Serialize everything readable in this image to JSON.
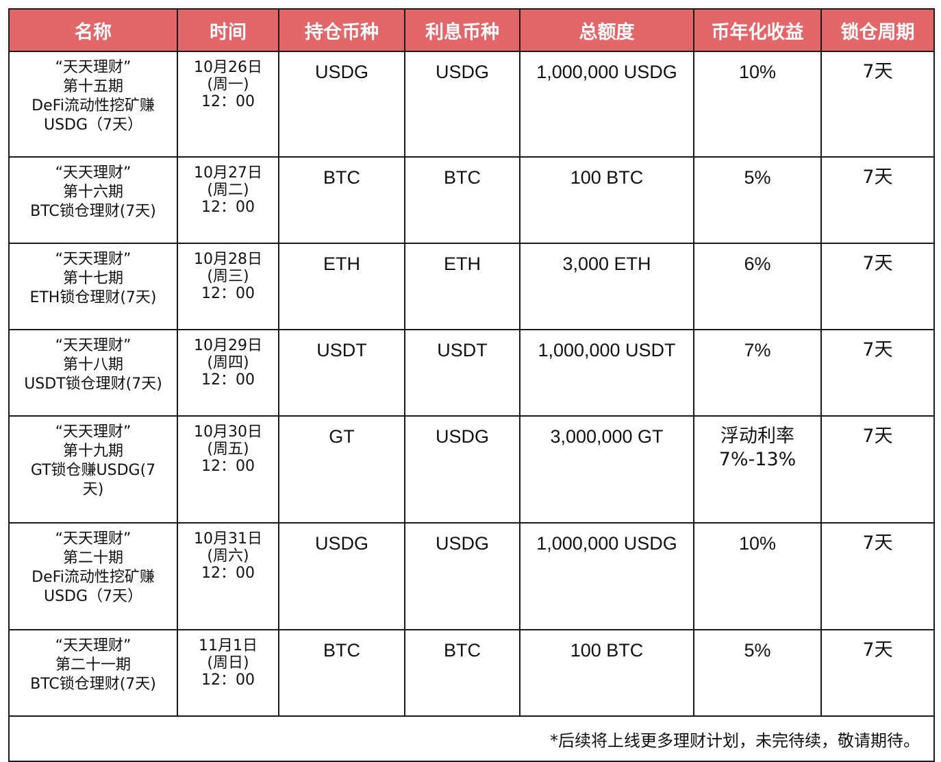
{
  "headers": [
    "名称",
    "时间",
    "持仓币种",
    "利息币种",
    "总额度",
    "币年化收益",
    "锁仓周期"
  ],
  "rows": [
    {
      "name": [
        "“天天理财”",
        "第十五期",
        "DeFi流动性挖矿赚",
        "USDG（7天）"
      ],
      "time": [
        "10月26日",
        "(周一)",
        "12：00"
      ],
      "holding": "USDG",
      "interest": "USDG",
      "total": "1,000,000 USDG",
      "apy": [
        "10%"
      ],
      "lock": "7天"
    },
    {
      "name": [
        "“天天理财”",
        "第十六期",
        "BTC锁仓理财(7天)"
      ],
      "time": [
        "10月27日",
        "(周二)",
        "12：00"
      ],
      "holding": "BTC",
      "interest": "BTC",
      "total": "100 BTC",
      "apy": [
        "5%"
      ],
      "lock": "7天"
    },
    {
      "name": [
        "“天天理财”",
        "第十七期",
        "ETH锁仓理财(7天)"
      ],
      "time": [
        "10月28日",
        "(周三)",
        "12：00"
      ],
      "holding": "ETH",
      "interest": "ETH",
      "total": "3,000 ETH",
      "apy": [
        "6%"
      ],
      "lock": "7天"
    },
    {
      "name": [
        "“天天理财”",
        "第十八期",
        "USDT锁仓理财(7天)"
      ],
      "time": [
        "10月29日",
        "(周四)",
        "12：00"
      ],
      "holding": "USDT",
      "interest": "USDT",
      "total": "1,000,000 USDT",
      "apy": [
        "7%"
      ],
      "lock": "7天"
    },
    {
      "name": [
        "“天天理财”",
        "第十九期",
        "GT锁仓赚USDG(7",
        "天)"
      ],
      "time": [
        "10月30日",
        "(周五)",
        "12：00"
      ],
      "holding": "GT",
      "interest": "USDG",
      "total": "3,000,000 GT",
      "apy": [
        "浮动利率",
        "7%-13%"
      ],
      "lock": "7天"
    },
    {
      "name": [
        "“天天理财”",
        "第二十期",
        "DeFi流动性挖矿赚",
        "USDG（7天）"
      ],
      "time": [
        "10月31日",
        "(周六)",
        "12：00"
      ],
      "holding": "USDG",
      "interest": "USDG",
      "total": "1,000,000 USDG",
      "apy": [
        "10%"
      ],
      "lock": "7天"
    },
    {
      "name": [
        "“天天理财”",
        "第二十一期",
        "BTC锁仓理财(7天)"
      ],
      "time": [
        "11月1日",
        "(周日)",
        "12：00"
      ],
      "holding": "BTC",
      "interest": "BTC",
      "total": "100 BTC",
      "apy": [
        "5%"
      ],
      "lock": "7天"
    }
  ],
  "footnote": "*后续将上线更多理财计划，未完待续，敬请期待。",
  "colors": {
    "header_bg": "#e2676a",
    "header_text": "#ffffff",
    "border": "#1a1a1a"
  }
}
